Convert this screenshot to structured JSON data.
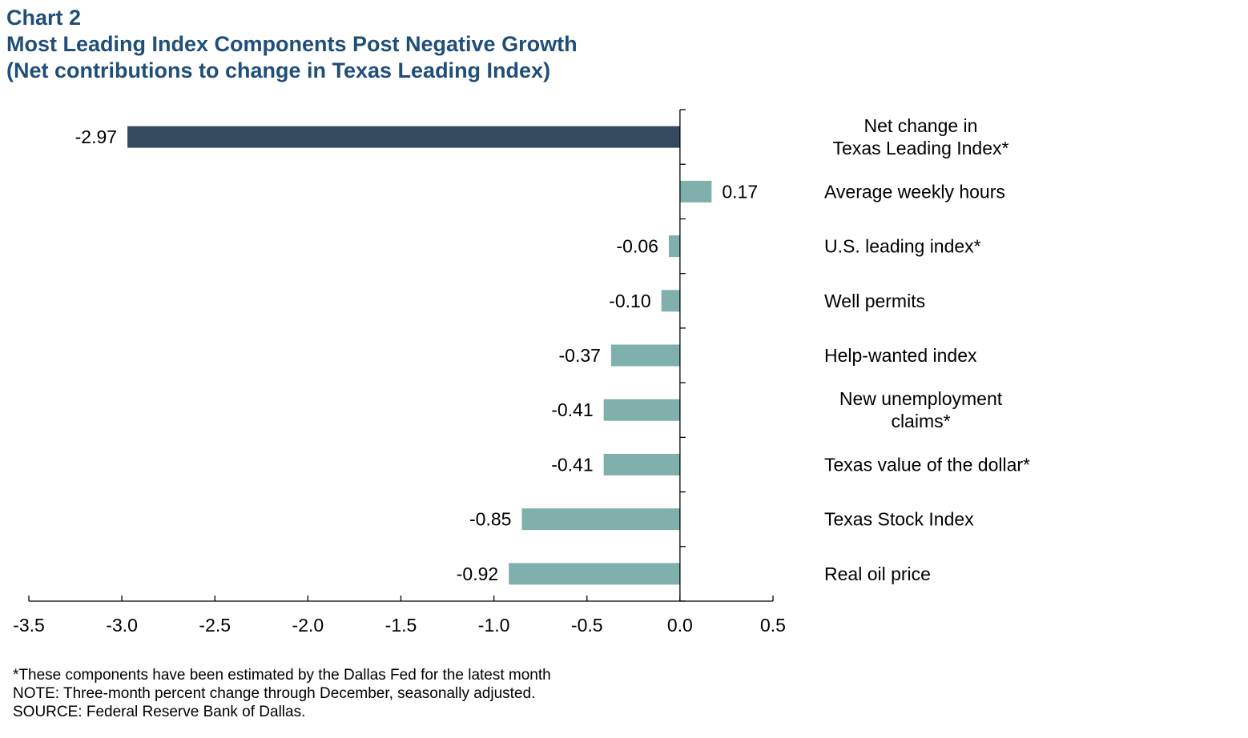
{
  "header": {
    "chart_number": "Chart 2",
    "title": "Most Leading Index Components Post Negative Growth",
    "subtitle": "(Net contributions to change in Texas Leading Index)"
  },
  "colors": {
    "title": "#1f4e79",
    "total_bar": "#344b5f",
    "component_bar": "#7fb0ab",
    "axis": "#000000"
  },
  "chart_data": {
    "type": "bar",
    "orientation": "horizontal",
    "title": "Most Leading Index Components Post Negative Growth",
    "subtitle": "(Net contributions to change in Texas Leading Index)",
    "xlabel": "",
    "ylabel": "",
    "xlim": [
      -3.5,
      0.5
    ],
    "xticks": [
      "-3.5",
      "-3.0",
      "-2.5",
      "-2.0",
      "-1.5",
      "-1.0",
      "-0.5",
      "0.0",
      "0.5"
    ],
    "grid": false,
    "legend": "none",
    "categories": [
      [
        "Net change in",
        "Texas Leading Index*"
      ],
      [
        "Average weekly hours"
      ],
      [
        "U.S. leading index*"
      ],
      [
        "Well permits"
      ],
      [
        "Help-wanted index"
      ],
      [
        "New unemployment",
        "claims*"
      ],
      [
        "Texas value of the dollar*"
      ],
      [
        "Texas Stock Index"
      ],
      [
        "Real oil price"
      ]
    ],
    "values": [
      -2.97,
      0.17,
      -0.06,
      -0.1,
      -0.37,
      -0.41,
      -0.41,
      -0.85,
      -0.92
    ],
    "value_labels": [
      "-2.97",
      "0.17",
      "-0.06",
      "-0.10",
      "-0.37",
      "-0.41",
      "-0.41",
      "-0.85",
      "-0.92"
    ],
    "highlight": [
      "total",
      "component",
      "component",
      "component",
      "component",
      "component",
      "component",
      "component",
      "component"
    ]
  },
  "footnotes": {
    "asterisk_note": "*These components have been estimated by the Dallas Fed for the latest month",
    "note": "NOTE: Three-month percent change through December, seasonally adjusted.",
    "source": "SOURCE: Federal Reserve Bank of Dallas."
  }
}
